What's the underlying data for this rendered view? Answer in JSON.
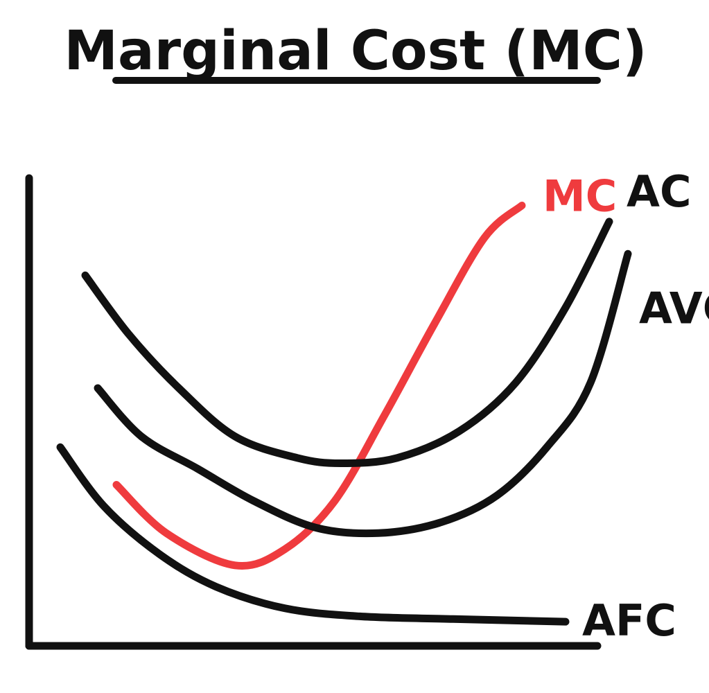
{
  "title": "Marginal Cost (MC)",
  "colors": {
    "ink": "#111111",
    "highlight": "#ef3b3e",
    "background": "#ffffff"
  },
  "chart_data": {
    "type": "line",
    "title": "Marginal Cost (MC)",
    "xlabel": "",
    "ylabel": "",
    "grid": false,
    "legend": "none",
    "axis_ranges": {
      "x": [
        0,
        10
      ],
      "y": [
        0,
        10
      ]
    },
    "series": [
      {
        "name": "MC",
        "color": "#ef3b3e",
        "points": [
          [
            1.4,
            3.0
          ],
          [
            2.2,
            2.1
          ],
          [
            3.3,
            1.5
          ],
          [
            4.1,
            1.8
          ],
          [
            4.9,
            2.7
          ],
          [
            5.7,
            4.3
          ],
          [
            6.5,
            6.0
          ],
          [
            7.3,
            7.6
          ],
          [
            7.9,
            8.2
          ]
        ]
      },
      {
        "name": "AC",
        "color": "#111111",
        "points": [
          [
            0.9,
            6.9
          ],
          [
            1.6,
            5.8
          ],
          [
            2.4,
            4.8
          ],
          [
            3.3,
            3.9
          ],
          [
            4.3,
            3.5
          ],
          [
            5.0,
            3.4
          ],
          [
            5.9,
            3.5
          ],
          [
            6.9,
            4.0
          ],
          [
            7.8,
            4.9
          ],
          [
            8.6,
            6.3
          ],
          [
            9.3,
            7.9
          ]
        ]
      },
      {
        "name": "AVC",
        "color": "#111111",
        "points": [
          [
            1.1,
            4.8
          ],
          [
            1.8,
            3.9
          ],
          [
            2.7,
            3.3
          ],
          [
            3.6,
            2.7
          ],
          [
            4.6,
            2.2
          ],
          [
            5.6,
            2.1
          ],
          [
            6.6,
            2.3
          ],
          [
            7.5,
            2.8
          ],
          [
            8.3,
            3.7
          ],
          [
            9.0,
            4.9
          ],
          [
            9.6,
            7.3
          ]
        ]
      },
      {
        "name": "AFC",
        "color": "#111111",
        "points": [
          [
            0.5,
            3.7
          ],
          [
            1.2,
            2.6
          ],
          [
            2.1,
            1.7
          ],
          [
            3.0,
            1.1
          ],
          [
            4.1,
            0.7
          ],
          [
            5.3,
            0.55
          ],
          [
            6.8,
            0.5
          ],
          [
            8.6,
            0.45
          ]
        ]
      }
    ]
  }
}
